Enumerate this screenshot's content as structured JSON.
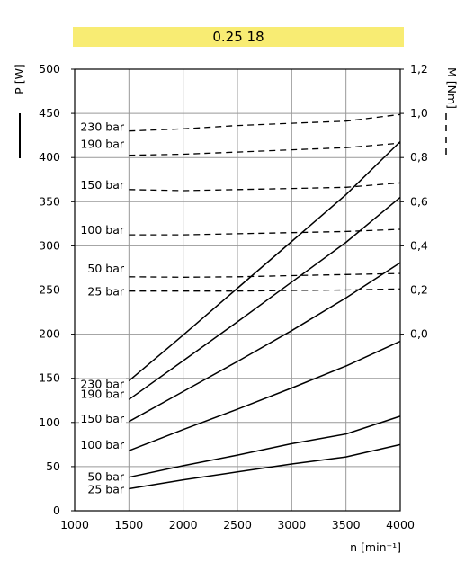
{
  "chart_data": {
    "type": "line",
    "title": "0.25 18",
    "xlabel": "n [min⁻¹]",
    "ylabel_left": "P [W]",
    "ylabel_right": "M [Nm]",
    "xlim": [
      1000,
      4000
    ],
    "ylim_left": [
      0,
      500
    ],
    "ylim_right": [
      0.0,
      1.2
    ],
    "x_ticks": [
      "1000",
      "1500",
      "2000",
      "2500",
      "3000",
      "3500",
      "4000"
    ],
    "y_ticks_left": [
      "0",
      "50",
      "100",
      "150",
      "200",
      "250",
      "300",
      "350",
      "400",
      "450",
      "500"
    ],
    "y_ticks_right": [
      "0,0",
      "0,2",
      "0,4",
      "0,6",
      "0,8",
      "1,0",
      "1,2"
    ],
    "grid": true,
    "x": [
      1500,
      2000,
      2500,
      3000,
      3500,
      4000
    ],
    "power_series": [
      {
        "name": "230 bar",
        "values": [
          147,
          199,
          252,
          305,
          358,
          418
        ]
      },
      {
        "name": "190 bar",
        "values": [
          126,
          170,
          214,
          259,
          304,
          355
        ]
      },
      {
        "name": "150 bar",
        "values": [
          101,
          135,
          169,
          204,
          241,
          281
        ]
      },
      {
        "name": "100 bar",
        "values": [
          68,
          92,
          115,
          139,
          164,
          192
        ]
      },
      {
        "name": "50 bar",
        "values": [
          38,
          51,
          63,
          76,
          87,
          107
        ]
      },
      {
        "name": "25 bar",
        "values": [
          25,
          35,
          44,
          53,
          61,
          75
        ]
      }
    ],
    "torque_series": [
      {
        "name": "230 bar",
        "values": [
          0.92,
          0.93,
          0.945,
          0.955,
          0.965,
          0.995
        ]
      },
      {
        "name": "190 bar",
        "values": [
          0.81,
          0.815,
          0.825,
          0.835,
          0.845,
          0.865
        ]
      },
      {
        "name": "150 bar",
        "values": [
          0.655,
          0.65,
          0.655,
          0.66,
          0.665,
          0.685
        ]
      },
      {
        "name": "100 bar",
        "values": [
          0.45,
          0.45,
          0.455,
          0.46,
          0.465,
          0.475
        ]
      },
      {
        "name": "50 bar",
        "values": [
          0.26,
          0.258,
          0.26,
          0.265,
          0.27,
          0.275
        ]
      },
      {
        "name": "25 bar",
        "values": [
          0.195,
          0.195,
          0.195,
          0.198,
          0.2,
          0.205
        ]
      }
    ]
  }
}
